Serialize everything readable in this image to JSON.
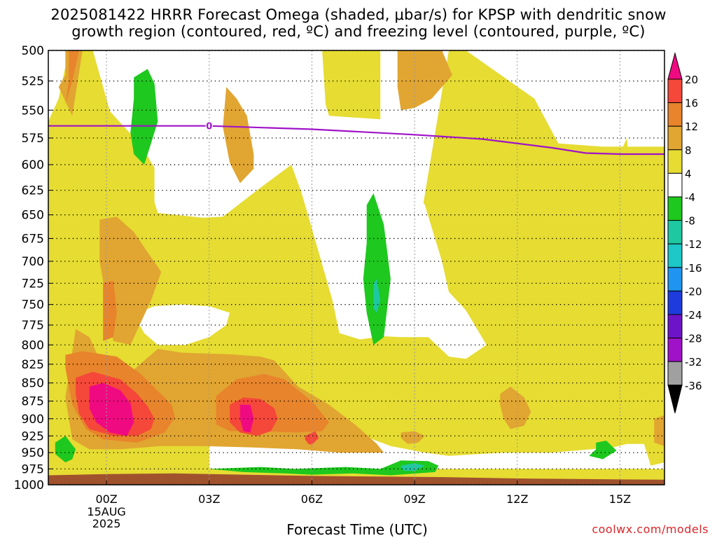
{
  "title_line1": "2025081422 HRRR Forecast Omega (shaded, μbar/s) for KPSP with dendritic snow",
  "title_line2": "growth region (contoured, red, ºC) and freezing level (contoured, purple, ºC)",
  "xaxis_title": "Forecast Time (UTC)",
  "credit": "coolwx.com/models",
  "freezing_label": "0",
  "colors": {
    "white": "#ffffff",
    "yellow": "#e6dc32",
    "gold": "#e1a531",
    "orange": "#e8842b",
    "red": "#f5473a",
    "magenta": "#f00a82",
    "green": "#1ec81e",
    "teal": "#1ec8a0",
    "ground": "#a0522d",
    "freezing_line": "#a013c8"
  },
  "chart_data": {
    "type": "heatmap",
    "title": "2025081422 HRRR Forecast Omega (shaded, μbar/s) for KPSP with dendritic snow growth region (contoured, red, ºC) and freezing level (contoured, purple, ºC)",
    "xlabel": "Forecast Time (UTC)",
    "ylabel": "",
    "xlim": [
      -1.7,
      16.3
    ],
    "ylim": [
      1000,
      500
    ],
    "y_scale": "log-pressure",
    "x_ticks": [
      {
        "label": "00Z",
        "sub": [
          "15AUG",
          "2025"
        ]
      },
      {
        "label": "03Z",
        "sub": []
      },
      {
        "label": "06Z",
        "sub": []
      },
      {
        "label": "09Z",
        "sub": []
      },
      {
        "label": "12Z",
        "sub": []
      },
      {
        "label": "15Z",
        "sub": []
      }
    ],
    "y_ticks": [
      "500",
      "525",
      "550",
      "575",
      "600",
      "625",
      "650",
      "675",
      "700",
      "725",
      "750",
      "775",
      "800",
      "825",
      "850",
      "875",
      "900",
      "925",
      "950",
      "975",
      "1000"
    ],
    "grid": true,
    "colorbar": {
      "labels": [
        "20",
        "16",
        "12",
        "8",
        "4",
        "-4",
        "-8",
        "-12",
        "-16",
        "-20",
        "-24",
        "-28",
        "-32",
        "-36"
      ],
      "colors": [
        "#f00a82",
        "#f5473a",
        "#e8842b",
        "#e1a531",
        "#e6dc32",
        "#ffffff",
        "#1ec81e",
        "#1ec8a0",
        "#1ec8c8",
        "#1e96f0",
        "#1e3cdc",
        "#6e14c8",
        "#a012c8",
        "#a0a0a0",
        "#000000"
      ]
    },
    "freezing_level": {
      "label": "0",
      "x": [
        -1.7,
        0,
        3,
        6,
        9,
        11,
        13,
        14,
        15,
        16.3
      ],
      "p": [
        564,
        564,
        564,
        567,
        572,
        576,
        584,
        589,
        590,
        590
      ]
    },
    "regions": [
      {
        "level": "yellow",
        "x": [
          -1.7,
          -0.5,
          0.8,
          2.6,
          3.6,
          3.6,
          6.8,
          8.0,
          8.0,
          9.2,
          10.0,
          10.5,
          12.5,
          13.2,
          14.5,
          16.3,
          16.3,
          15.2,
          14.0,
          12.5,
          11.0,
          9.7,
          8.5,
          7.0,
          5.6,
          4.0,
          2.0,
          0.6,
          0,
          -0.6,
          -1.7
        ],
        "p": [
          500,
          500,
          500,
          500,
          500,
          500,
          500,
          500,
          650,
          650,
          500,
          500,
          540,
          580,
          583,
          583,
          1000,
          1000,
          1000,
          1000,
          1000,
          1000,
          1000,
          1000,
          1000,
          1000,
          1000,
          1000,
          1000,
          1000,
          1000
        ]
      },
      {
        "level": "white",
        "x": [
          -1.7,
          -1.1,
          -1.4,
          -1.7
        ],
        "p": [
          500,
          500,
          540,
          560
        ]
      },
      {
        "level": "white",
        "x": [
          -0.5,
          -0.2,
          0.8,
          2.1,
          3.1,
          3.6,
          4.0,
          5.2,
          6.3,
          6.4,
          6.5,
          7.0,
          8.0,
          8.1,
          8.4,
          9.3,
          9.8,
          10.0,
          10.5,
          11.1,
          10.5,
          10.0,
          9.4,
          8.6,
          8.1,
          7.4,
          6.8,
          6.6,
          5.9,
          5.7,
          5.4,
          4.4,
          3.4,
          2.8,
          1.5,
          1.4,
          1.4,
          1.2,
          0.9,
          0.7,
          0.4,
          0.1,
          -0.4
        ],
        "p": [
          500,
          500,
          500,
          500,
          500,
          500,
          500,
          500,
          500,
          545,
          555,
          556,
          558,
          565,
          588,
          640,
          700,
          735,
          757,
          800,
          818,
          815,
          790,
          790,
          789,
          793,
          785,
          745,
          652,
          628,
          600,
          625,
          652,
          653,
          648,
          637,
          603,
          592,
          582,
          571,
          561,
          551,
          500
        ]
      },
      {
        "level": "white",
        "x": [
          0.9,
          1.4,
          2.2,
          3.0,
          3.6,
          3.5,
          3.0,
          2.3,
          1.5,
          1.1,
          0.9
        ],
        "p": [
          760,
          752,
          750,
          752,
          760,
          775,
          790,
          800,
          800,
          785,
          770
        ]
      },
      {
        "level": "white",
        "x": [
          3.0,
          4.0,
          5.5,
          6.3,
          7.5,
          8.5,
          9.8,
          10.5,
          11.1,
          12.0,
          12.7,
          13.2,
          14.6,
          16.3,
          16.3,
          15.2,
          14.8,
          13.0,
          11.6,
          10.0,
          9.3,
          8.3,
          7.5,
          6.5,
          5.1,
          4.5,
          3.8,
          3.0
        ],
        "p": [
          975,
          975,
          975,
          975,
          975,
          975,
          975,
          975,
          975,
          975,
          975,
          975,
          975,
          975,
          937,
          937,
          942,
          950,
          950,
          955,
          950,
          940,
          925,
          915,
          910,
          905,
          903,
          915
        ]
      },
      {
        "level": "gold",
        "x": [
          -0.9,
          -0.5,
          0.3,
          0.6,
          1.5,
          2.2,
          3.6,
          4.5,
          4.9,
          5.6,
          6.5,
          7.3,
          7.9,
          8.1,
          7.7,
          6.8,
          5.6,
          4.2,
          2.8,
          1.6,
          0.4,
          -0.5,
          -1.0,
          -1.2
        ],
        "p": [
          780,
          790,
          870,
          840,
          805,
          810,
          812,
          815,
          820,
          855,
          880,
          910,
          937,
          950,
          950,
          950,
          945,
          942,
          940,
          940,
          945,
          945,
          930,
          870
        ]
      },
      {
        "level": "gold",
        "x": [
          -0.2,
          0.3,
          0.8,
          1.2,
          1.6,
          1.3,
          0.7,
          0.2,
          -0.2
        ],
        "p": [
          655,
          652,
          668,
          690,
          712,
          745,
          800,
          795,
          700
        ]
      },
      {
        "level": "gold",
        "x": [
          3.5,
          3.8,
          4.1,
          4.3,
          4.3,
          3.9,
          3.6,
          3.4,
          3.5
        ],
        "p": [
          530,
          540,
          555,
          590,
          604,
          618,
          598,
          565,
          530
        ]
      },
      {
        "level": "gold",
        "x": [
          -1.2,
          -0.7,
          -1.0,
          -1.4,
          -1.2
        ],
        "p": [
          500,
          500,
          555,
          530,
          520
        ]
      },
      {
        "level": "gold",
        "x": [
          8.5,
          9.2,
          9.8,
          10.1,
          9.5,
          9.0,
          8.6,
          8.5
        ],
        "p": [
          500,
          500,
          500,
          520,
          540,
          548,
          550,
          530
        ]
      },
      {
        "level": "gold",
        "x": [
          11.5,
          11.8,
          12.2,
          12.4,
          12.2,
          11.8,
          11.6,
          11.5
        ],
        "p": [
          865,
          855,
          870,
          890,
          910,
          915,
          900,
          880
        ]
      },
      {
        "level": "orange",
        "x": [
          -1.2,
          -0.7,
          0.3,
          1.0,
          1.9,
          2.0,
          1.7,
          0.9,
          -0.1,
          -0.6,
          -1.0,
          -1.2
        ],
        "p": [
          813,
          808,
          815,
          838,
          880,
          898,
          920,
          935,
          930,
          915,
          880,
          830
        ]
      },
      {
        "level": "orange",
        "x": [
          -0.1,
          0.2,
          0.3,
          0.2,
          -0.1,
          -0.1
        ],
        "p": [
          725,
          722,
          760,
          790,
          795,
          760
        ]
      },
      {
        "level": "orange",
        "x": [
          -1.1,
          -0.8,
          -1.0,
          -1.2,
          -1.1
        ],
        "p": [
          500,
          500,
          525,
          545,
          525
        ]
      },
      {
        "level": "orange",
        "x": [
          3.2,
          3.8,
          4.6,
          5.2,
          6.0,
          6.5,
          6.3,
          5.5,
          4.5,
          3.6,
          3.2,
          3.2
        ],
        "p": [
          868,
          845,
          838,
          845,
          875,
          905,
          918,
          920,
          918,
          918,
          908,
          890
        ]
      },
      {
        "level": "red",
        "x": [
          -0.9,
          -0.4,
          0.4,
          0.9,
          1.2,
          1.4,
          1.3,
          0.9,
          0.2,
          -0.5,
          -0.8,
          -0.9
        ],
        "p": [
          843,
          835,
          845,
          865,
          882,
          900,
          915,
          925,
          925,
          915,
          893,
          865
        ]
      },
      {
        "level": "red",
        "x": [
          3.6,
          4.0,
          4.5,
          4.9,
          5.0,
          4.8,
          4.4,
          3.9,
          3.6,
          3.6
        ],
        "p": [
          880,
          870,
          872,
          885,
          900,
          918,
          925,
          920,
          905,
          890
        ]
      },
      {
        "level": "red",
        "x": [
          5.8,
          6.1,
          6.2,
          6.0,
          5.9,
          5.8
        ],
        "p": [
          925,
          918,
          928,
          938,
          937,
          930
        ]
      },
      {
        "level": "magenta",
        "x": [
          -0.5,
          -0.1,
          0.4,
          0.7,
          0.8,
          0.6,
          0.1,
          -0.3,
          -0.5,
          -0.5
        ],
        "p": [
          855,
          850,
          860,
          878,
          905,
          925,
          920,
          905,
          885,
          868
        ]
      },
      {
        "level": "magenta",
        "x": [
          3.9,
          4.2,
          4.3,
          4.2,
          4.0,
          3.9
        ],
        "p": [
          880,
          880,
          900,
          920,
          918,
          900
        ]
      },
      {
        "level": "gold",
        "x": [
          8.6,
          9.0,
          9.3,
          9.1,
          8.8,
          8.6
        ],
        "p": [
          920,
          918,
          925,
          935,
          937,
          928
        ]
      },
      {
        "level": "green",
        "x": [
          0.8,
          1.2,
          1.4,
          1.5,
          1.3,
          1.1,
          0.8,
          0.7,
          0.8
        ],
        "p": [
          522,
          515,
          527,
          560,
          580,
          600,
          590,
          570,
          540
        ]
      },
      {
        "level": "green",
        "x": [
          7.6,
          7.8,
          8.1,
          8.3,
          8.1,
          7.8,
          7.6,
          7.5,
          7.6
        ],
        "p": [
          640,
          628,
          660,
          720,
          790,
          800,
          760,
          720,
          680
        ]
      },
      {
        "level": "teal",
        "x": [
          7.8,
          7.9,
          8.0,
          7.9,
          7.8,
          7.8
        ],
        "p": [
          725,
          720,
          745,
          760,
          755,
          740
        ]
      },
      {
        "level": "green",
        "x": [
          -1.5,
          -1.2,
          -0.9,
          -1.0,
          -1.2,
          -1.5,
          -1.5
        ],
        "p": [
          935,
          925,
          945,
          960,
          965,
          952,
          940
        ]
      },
      {
        "level": "green",
        "x": [
          14.3,
          14.6,
          14.9,
          14.5,
          14.1,
          14.3
        ],
        "p": [
          935,
          932,
          947,
          960,
          955,
          945
        ]
      },
      {
        "level": "green",
        "x": [
          3.0,
          4.5,
          5.5,
          7.0,
          8.0,
          8.6,
          9.4,
          9.7,
          9.6,
          8.3,
          7.2,
          6.0,
          5.2,
          4.0,
          3.0
        ],
        "p": [
          975,
          972,
          975,
          972,
          975,
          962,
          963,
          970,
          980,
          985,
          982,
          984,
          982,
          980,
          975
        ]
      },
      {
        "level": "teal",
        "x": [
          8.6,
          9.0,
          9.3,
          9.0,
          8.7,
          8.6
        ],
        "p": [
          970,
          966,
          970,
          978,
          978,
          973
        ]
      },
      {
        "level": "yellow",
        "x": [
          15.6,
          16.0,
          16.3,
          16.3,
          15.9,
          15.6
        ],
        "p": [
          875,
          862,
          858,
          965,
          970,
          920
        ]
      },
      {
        "level": "gold",
        "x": [
          16.0,
          16.3,
          16.3,
          16.0,
          16.0
        ],
        "p": [
          900,
          895,
          940,
          935,
          915
        ]
      },
      {
        "level": "yellow",
        "x": [
          14.8,
          15.0,
          15.2,
          15.3,
          15.2,
          15.0,
          14.8,
          14.7,
          14.8
        ],
        "p": [
          620,
          590,
          575,
          610,
          660,
          705,
          670,
          640,
          620
        ]
      },
      {
        "level": "ground",
        "x": [
          -1.7,
          0,
          2,
          4,
          6,
          8,
          10,
          12,
          14,
          16.3,
          16.3,
          -1.7
        ],
        "p": [
          985,
          983,
          982,
          984,
          986,
          987,
          988,
          990,
          991,
          992,
          1000,
          1000
        ]
      }
    ]
  }
}
